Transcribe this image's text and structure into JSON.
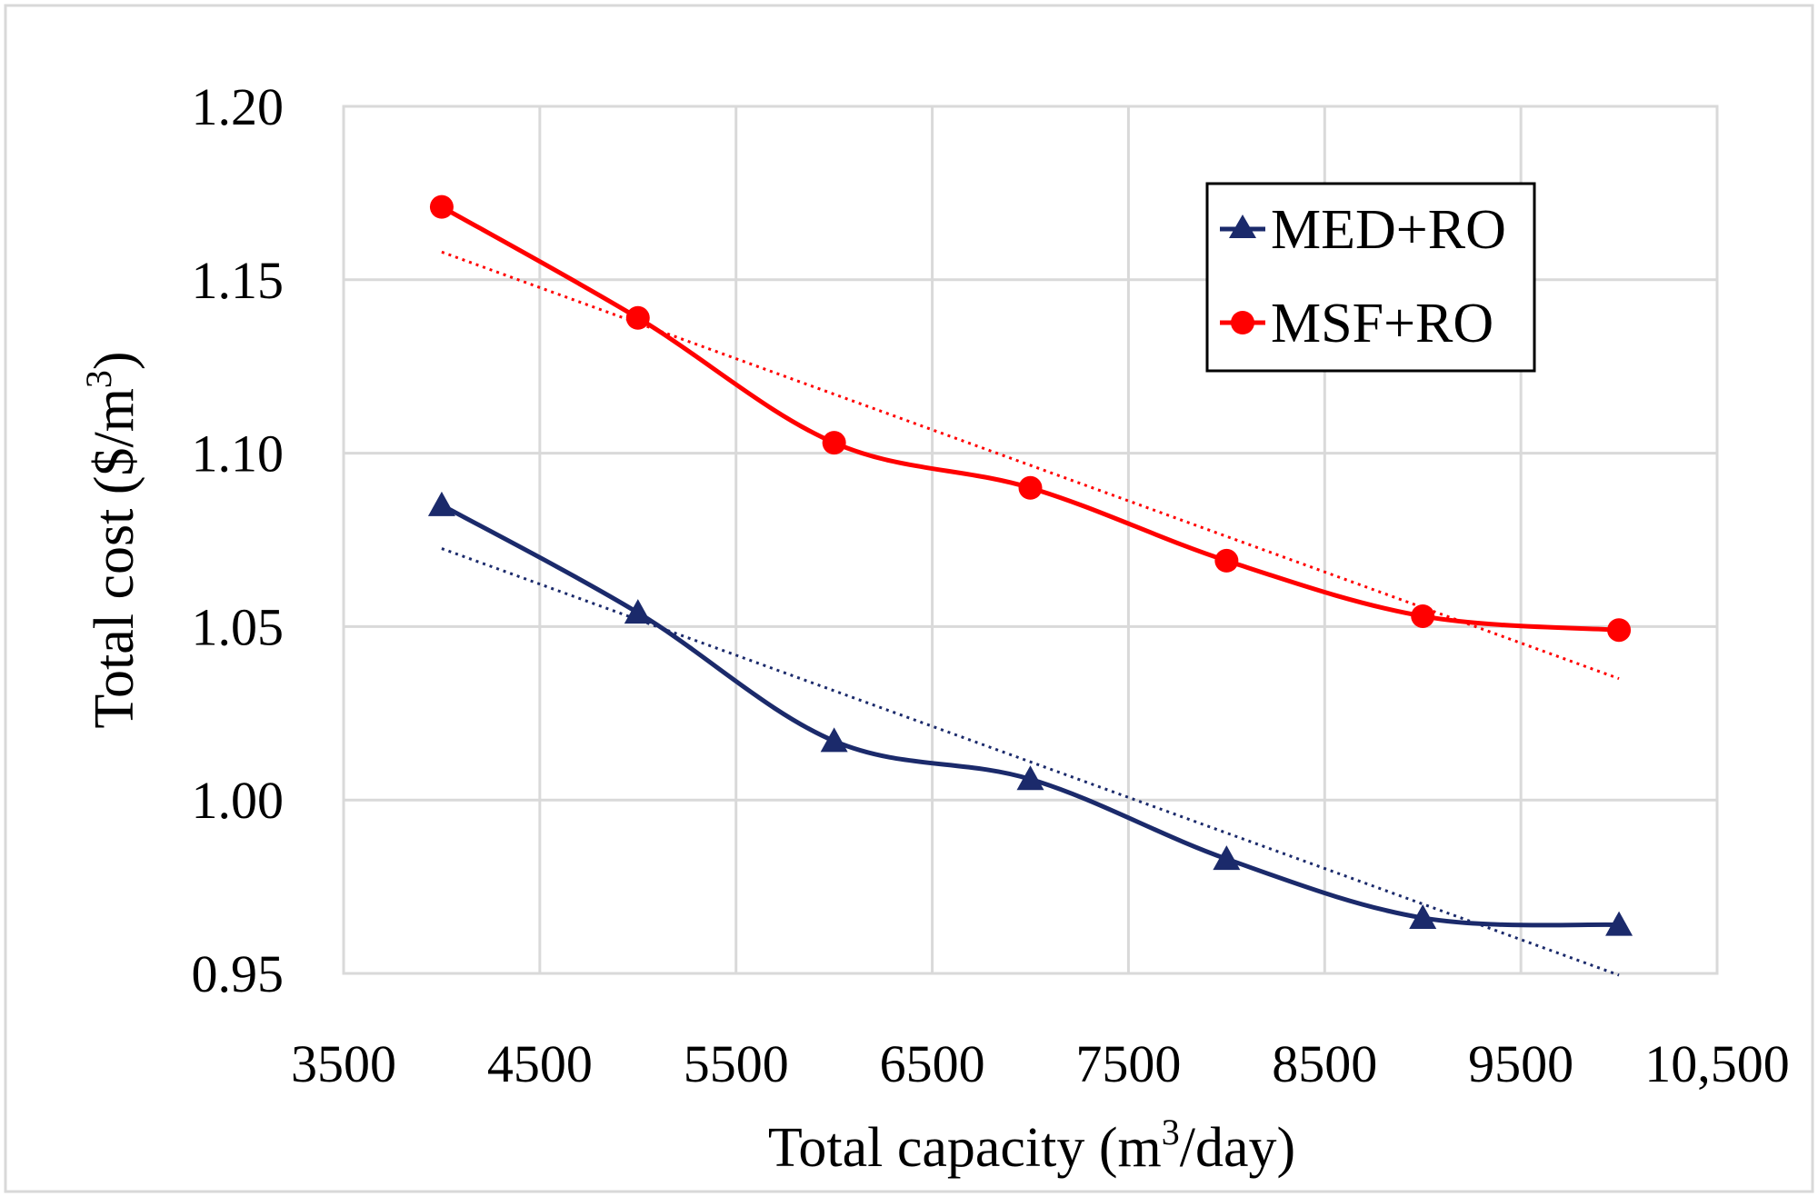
{
  "chart_data": {
    "type": "line",
    "title": "",
    "xlabel": {
      "before": "Total capacity (m",
      "sup": "3",
      "after": "/day)"
    },
    "ylabel": {
      "before": "Total cost ($/m",
      "sup": "3",
      "after": ")"
    },
    "xlim": [
      3500,
      10500
    ],
    "ylim": [
      0.95,
      1.2
    ],
    "xticks": [
      3500,
      4500,
      5500,
      6500,
      7500,
      8500,
      9500,
      10500
    ],
    "xtick_labels": [
      "3500",
      "4500",
      "5500",
      "6500",
      "7500",
      "8500",
      "9500",
      "10,500"
    ],
    "yticks": [
      0.95,
      1.0,
      1.05,
      1.1,
      1.15,
      1.2
    ],
    "ytick_labels": [
      "0.95",
      "1.00",
      "1.05",
      "1.10",
      "1.15",
      "1.20"
    ],
    "grid": true,
    "legend_position": "top-right",
    "series": [
      {
        "name": "MED+RO",
        "marker": "triangle",
        "color": "#1b2a6b",
        "x": [
          4000,
          5000,
          6000,
          7000,
          8000,
          9000,
          10000
        ],
        "values": [
          1.085,
          1.054,
          1.017,
          1.006,
          0.983,
          0.966,
          0.964
        ],
        "trendline": {
          "style": "dotted",
          "x": [
            4000,
            10000
          ],
          "y": [
            1.0725,
            0.9495
          ]
        }
      },
      {
        "name": "MSF+RO",
        "marker": "circle",
        "color": "#ff0000",
        "x": [
          4000,
          5000,
          6000,
          7000,
          8000,
          9000,
          10000
        ],
        "values": [
          1.171,
          1.139,
          1.103,
          1.09,
          1.069,
          1.053,
          1.049
        ],
        "trendline": {
          "style": "dotted",
          "x": [
            4000,
            10000
          ],
          "y": [
            1.158,
            1.035
          ]
        }
      }
    ]
  }
}
